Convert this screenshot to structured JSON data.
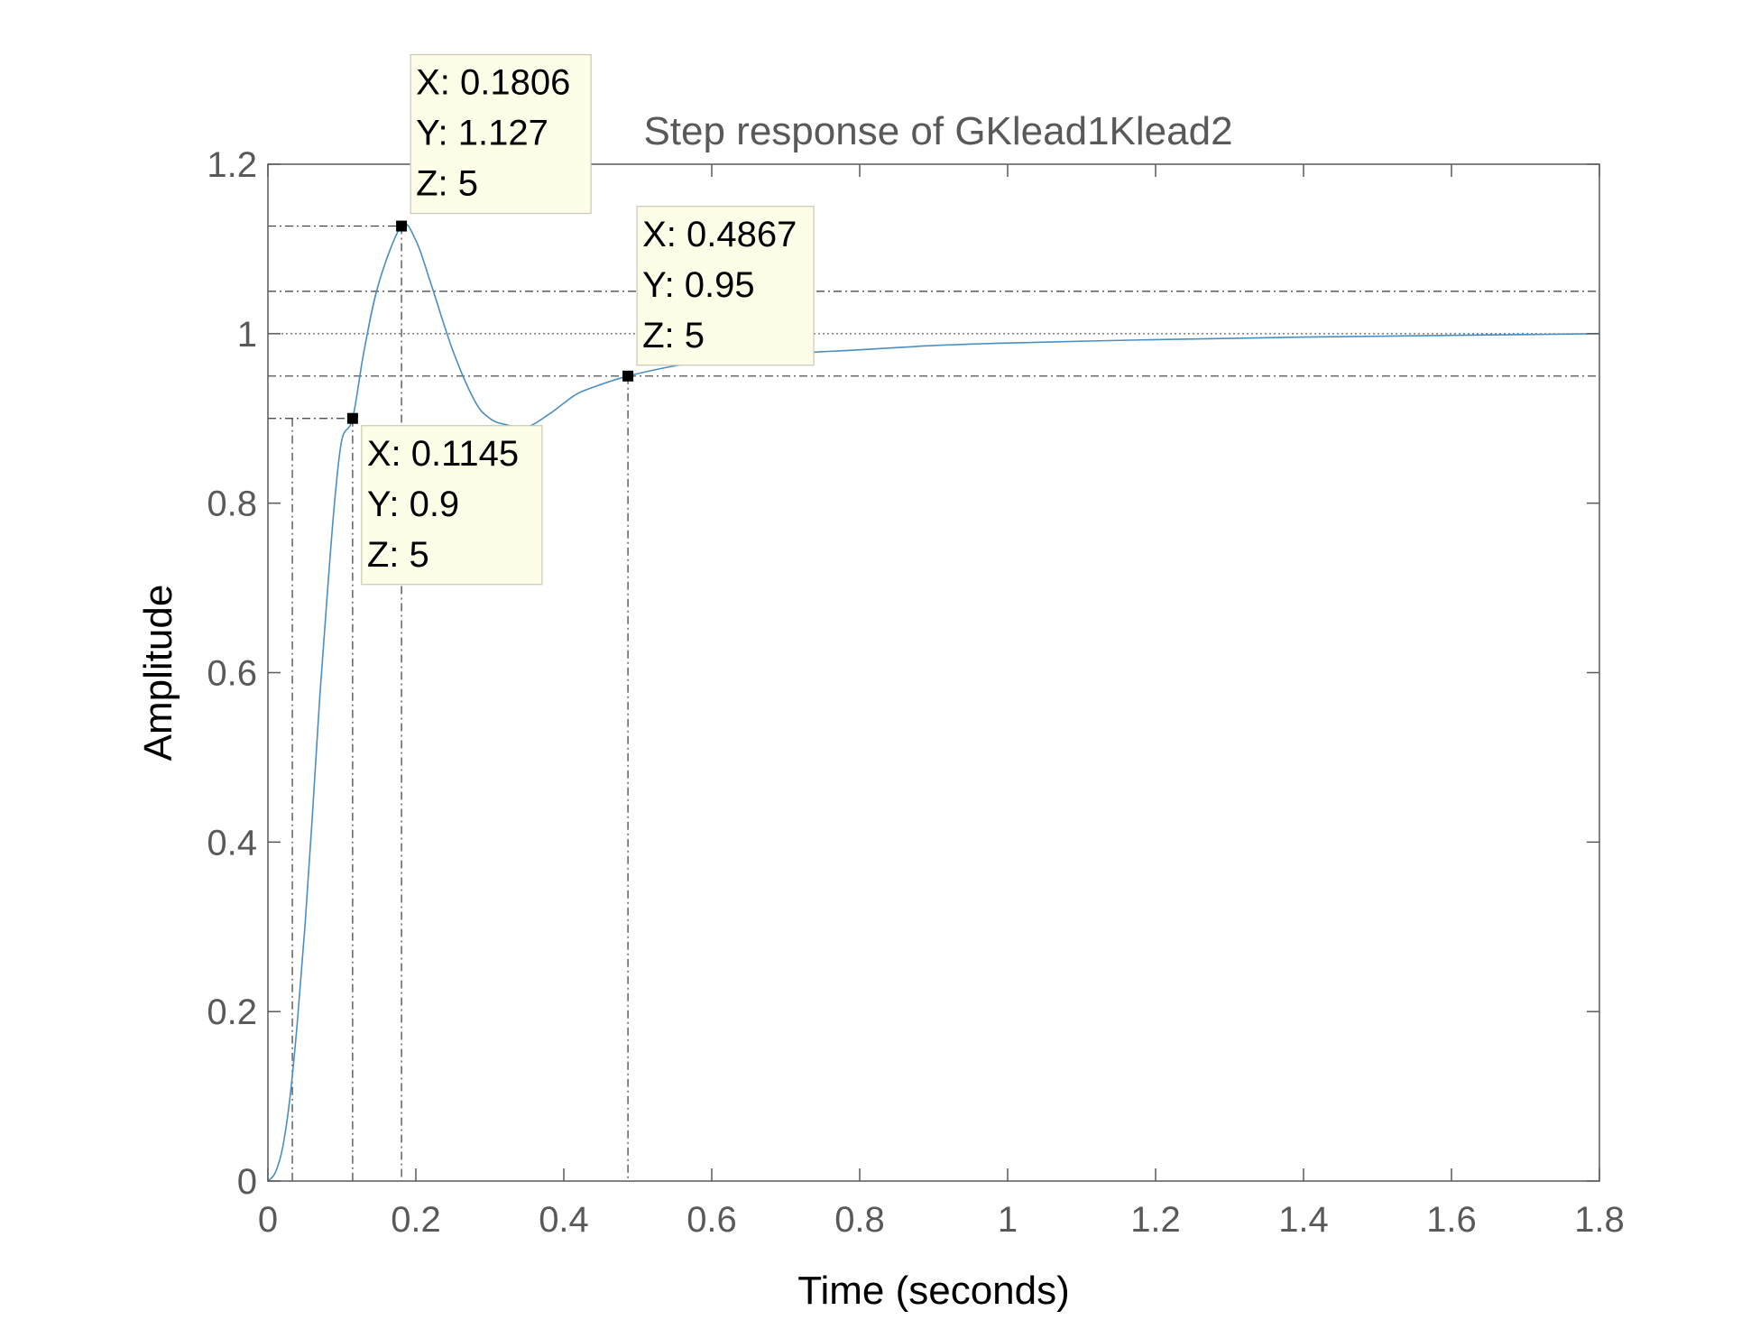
{
  "chart_data": {
    "type": "line",
    "title": "Step response of GKlead1Klead2",
    "xlabel": "Time (seconds)",
    "ylabel": "Amplitude",
    "xlim": [
      0,
      1.8
    ],
    "ylim": [
      0,
      1.2
    ],
    "xticks": [
      "0",
      "0.2",
      "0.4",
      "0.6",
      "0.8",
      "1",
      "1.2",
      "1.4",
      "1.6",
      "1.8"
    ],
    "yticks": [
      "0",
      "0.2",
      "0.4",
      "0.6",
      "0.8",
      "1",
      "1.2"
    ],
    "grid": false,
    "series": [
      {
        "color": "#4a8ec2",
        "x": [
          0,
          0.01,
          0.02,
          0.03,
          0.04,
          0.05,
          0.06,
          0.07,
          0.08,
          0.09,
          0.1,
          0.1145,
          0.13,
          0.15,
          0.1806,
          0.2,
          0.22,
          0.25,
          0.28,
          0.3,
          0.32,
          0.35,
          0.38,
          0.4,
          0.42,
          0.45,
          0.4867,
          0.55,
          0.6,
          0.7,
          0.8,
          0.9,
          1.0,
          1.2,
          1.4,
          1.6,
          1.8
        ],
        "y": [
          0,
          0.01,
          0.04,
          0.1,
          0.19,
          0.3,
          0.43,
          0.57,
          0.69,
          0.8,
          0.875,
          0.9,
          0.98,
          1.06,
          1.127,
          1.11,
          1.06,
          0.98,
          0.92,
          0.9,
          0.893,
          0.89,
          0.905,
          0.918,
          0.93,
          0.94,
          0.95,
          0.962,
          0.968,
          0.976,
          0.981,
          0.986,
          0.989,
          0.993,
          0.996,
          0.998,
          1.0
        ]
      }
    ],
    "reference_lines": {
      "horizontal": [
        1.05,
        1.0,
        0.95,
        1.127,
        0.9
      ],
      "vertical": [
        0.033,
        0.1145,
        0.1806,
        0.4867
      ]
    },
    "datatips": [
      {
        "x": 0.1806,
        "y": 1.127,
        "lines": [
          "X: 0.1806",
          "Y: 1.127",
          "Z: 5"
        ]
      },
      {
        "x": 0.4867,
        "y": 0.95,
        "lines": [
          "X: 0.4867",
          "Y: 0.95",
          "Z: 5"
        ]
      },
      {
        "x": 0.1145,
        "y": 0.9,
        "lines": [
          "X: 0.1145",
          "Y: 0.9",
          "Z: 5"
        ]
      }
    ],
    "colors": {
      "line": "#4a8ec2",
      "axis": "#595959",
      "datatip_fill": "#fefee8",
      "datatip_border": "#c8c8b4"
    }
  }
}
